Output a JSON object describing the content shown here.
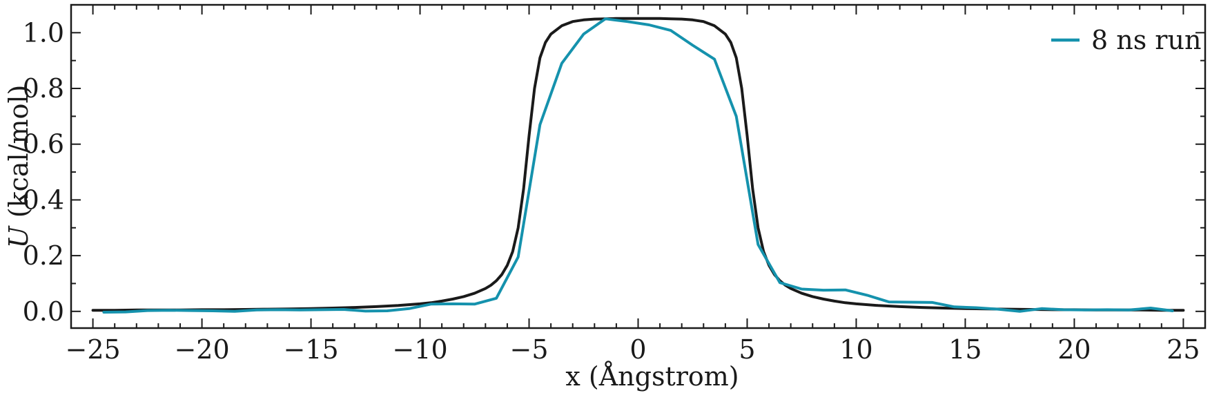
{
  "chart_data": {
    "type": "line",
    "xlabel": "x (Ångstrom)",
    "ylabel_italic": "U",
    "ylabel_rest": " (kcal/mol)",
    "xlim": [
      -26,
      26
    ],
    "ylim": [
      -0.06,
      1.1
    ],
    "xticks": [
      -25,
      -20,
      -15,
      -10,
      -5,
      0,
      5,
      10,
      15,
      20,
      25
    ],
    "xtick_labels": [
      "−25",
      "−20",
      "−15",
      "−10",
      "−5",
      "0",
      "5",
      "10",
      "15",
      "20",
      "25"
    ],
    "yticks": [
      0.0,
      0.2,
      0.4,
      0.6,
      0.8,
      1.0
    ],
    "ytick_labels": [
      "0.0",
      "0.2",
      "0.4",
      "0.6",
      "0.8",
      "1.0"
    ],
    "legend_position": "top-right",
    "colors": {
      "model": "#1a1a1a",
      "run": "#1592ad"
    },
    "series": [
      {
        "x": [
          -25,
          -24,
          -23,
          -22,
          -21,
          -20,
          -19,
          -18,
          -17,
          -16,
          -15,
          -14,
          -13,
          -12,
          -11,
          -10,
          -9.5,
          -9,
          -8.5,
          -8,
          -7.5,
          -7,
          -6.75,
          -6.5,
          -6.25,
          -6,
          -5.75,
          -5.5,
          -5.25,
          -5,
          -4.75,
          -4.5,
          -4.25,
          -4,
          -3.5,
          -3,
          -2.5,
          -2,
          -1.5,
          -1,
          -0.5,
          0,
          0.5,
          1,
          1.5,
          2,
          2.5,
          3,
          3.5,
          4,
          4.25,
          4.5,
          4.75,
          5,
          5.25,
          5.5,
          5.75,
          6,
          6.25,
          6.5,
          6.75,
          7,
          7.5,
          8,
          8.5,
          9,
          9.5,
          10,
          11,
          12,
          13,
          14,
          15,
          16,
          17,
          18,
          19,
          20,
          21,
          22,
          23,
          24,
          25
        ],
        "values": [
          0.004,
          0.004,
          0.005,
          0.005,
          0.005,
          0.006,
          0.006,
          0.007,
          0.008,
          0.009,
          0.01,
          0.012,
          0.014,
          0.017,
          0.021,
          0.027,
          0.031,
          0.037,
          0.044,
          0.053,
          0.065,
          0.082,
          0.094,
          0.11,
          0.132,
          0.165,
          0.215,
          0.3,
          0.44,
          0.63,
          0.8,
          0.91,
          0.965,
          0.995,
          1.025,
          1.04,
          1.046,
          1.049,
          1.05,
          1.051,
          1.051,
          1.051,
          1.051,
          1.051,
          1.05,
          1.049,
          1.046,
          1.04,
          1.025,
          0.995,
          0.965,
          0.91,
          0.8,
          0.63,
          0.44,
          0.3,
          0.215,
          0.165,
          0.132,
          0.11,
          0.094,
          0.082,
          0.065,
          0.053,
          0.044,
          0.037,
          0.031,
          0.027,
          0.021,
          0.017,
          0.014,
          0.012,
          0.01,
          0.009,
          0.008,
          0.007,
          0.006,
          0.006,
          0.005,
          0.005,
          0.005,
          0.004,
          0.004
        ]
      },
      {
        "name": "8 ns run",
        "x": [
          -24.5,
          -23.5,
          -22.5,
          -21.5,
          -20.5,
          -19.5,
          -18.5,
          -17.5,
          -16.5,
          -15.5,
          -14.5,
          -13.5,
          -12.5,
          -11.5,
          -10.5,
          -9.5,
          -8.5,
          -7.5,
          -6.5,
          -5.5,
          -4.5,
          -3.5,
          -2.5,
          -1.5,
          -0.5,
          0.5,
          1.5,
          2.5,
          3.5,
          4.5,
          5.5,
          6.5,
          7.5,
          8.5,
          9.5,
          10.5,
          11.5,
          12.5,
          13.5,
          14.5,
          15.5,
          16.5,
          17.5,
          18.5,
          19.5,
          20.5,
          21.5,
          22.5,
          23.5,
          24.5
        ],
        "values": [
          -0.003,
          -0.002,
          0.003,
          0.004,
          0.003,
          0.002,
          0.0,
          0.005,
          0.006,
          0.005,
          0.006,
          0.007,
          0.001,
          0.002,
          0.01,
          0.026,
          0.027,
          0.026,
          0.047,
          0.195,
          0.67,
          0.89,
          0.995,
          1.05,
          1.04,
          1.028,
          1.008,
          0.955,
          0.905,
          0.7,
          0.24,
          0.103,
          0.08,
          0.076,
          0.077,
          0.058,
          0.034,
          0.033,
          0.032,
          0.016,
          0.013,
          0.008,
          0.0,
          0.01,
          0.006,
          0.005,
          0.006,
          0.005,
          0.012,
          0.002
        ]
      }
    ]
  }
}
